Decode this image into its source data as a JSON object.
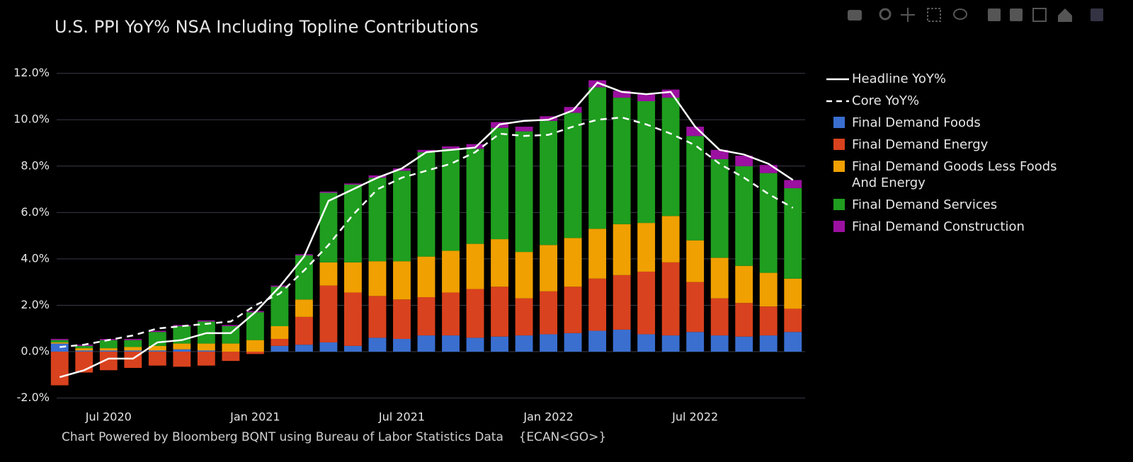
{
  "chart_data": {
    "type": "bar",
    "stacked": true,
    "title": "U.S. PPI YoY% NSA Including Topline Contributions",
    "source": "Chart Powered by Bloomberg BQNT using Bureau of Labor Statistics Data    {ECAN<GO>}",
    "x": [
      "2020-05",
      "2020-06",
      "2020-07",
      "2020-08",
      "2020-09",
      "2020-10",
      "2020-11",
      "2020-12",
      "2021-01",
      "2021-02",
      "2021-03",
      "2021-04",
      "2021-05",
      "2021-06",
      "2021-07",
      "2021-08",
      "2021-09",
      "2021-10",
      "2021-11",
      "2021-12",
      "2022-01",
      "2022-02",
      "2022-03",
      "2022-04",
      "2022-05",
      "2022-06",
      "2022-07",
      "2022-08",
      "2022-09",
      "2022-10",
      "2022-11"
    ],
    "xlim": [
      "2020-05",
      "2022-11"
    ],
    "xticks": [
      {
        "value": "2020-07",
        "label": "Jul 2020"
      },
      {
        "value": "2021-01",
        "label": "Jan 2021"
      },
      {
        "value": "2021-07",
        "label": "Jul 2021"
      },
      {
        "value": "2022-01",
        "label": "Jan 2022"
      },
      {
        "value": "2022-07",
        "label": "Jul 2022"
      }
    ],
    "ylim": [
      -2.5,
      12.6
    ],
    "yticks": [
      {
        "value": -2,
        "label": "-2.0%"
      },
      {
        "value": 0,
        "label": "0.0%"
      },
      {
        "value": 2,
        "label": "2.0%"
      },
      {
        "value": 4,
        "label": "4.0%"
      },
      {
        "value": 6,
        "label": "6.0%"
      },
      {
        "value": 8,
        "label": "8.0%"
      },
      {
        "value": 10,
        "label": "10.0%"
      },
      {
        "value": 12,
        "label": "12.0%"
      }
    ],
    "grid": true,
    "legend": "right",
    "series": [
      {
        "name": "Final Demand Foods",
        "type": "bar",
        "color": "#3a6fd0",
        "values": [
          0.35,
          0.05,
          0.05,
          0.05,
          0.05,
          0.1,
          0.05,
          0.0,
          0.0,
          0.25,
          0.3,
          0.4,
          0.25,
          0.6,
          0.55,
          0.7,
          0.7,
          0.6,
          0.65,
          0.7,
          0.75,
          0.8,
          0.9,
          0.95,
          0.75,
          0.7,
          0.85,
          0.7,
          0.65,
          0.7,
          0.85
        ]
      },
      {
        "name": "Final Demand Energy",
        "type": "bar",
        "color": "#d9421e",
        "values": [
          -1.45,
          -0.9,
          -0.8,
          -0.7,
          -0.6,
          -0.65,
          -0.6,
          -0.4,
          -0.1,
          0.3,
          1.2,
          2.45,
          2.3,
          1.8,
          1.7,
          1.65,
          1.85,
          2.1,
          2.15,
          1.6,
          1.85,
          2.0,
          2.25,
          2.35,
          2.7,
          3.15,
          2.15,
          1.6,
          1.45,
          1.25,
          1.0
        ]
      },
      {
        "name": "Final Demand Goods Less Foods And Energy",
        "type": "bar",
        "color": "#f0a000",
        "values": [
          0.05,
          0.1,
          0.1,
          0.15,
          0.2,
          0.25,
          0.3,
          0.35,
          0.5,
          0.55,
          0.75,
          1.0,
          1.3,
          1.5,
          1.65,
          1.75,
          1.8,
          1.95,
          2.05,
          2.0,
          2.0,
          2.1,
          2.15,
          2.2,
          2.1,
          2.0,
          1.8,
          1.75,
          1.6,
          1.45,
          1.3
        ]
      },
      {
        "name": "Final Demand Services",
        "type": "bar",
        "color": "#1f9e1f",
        "values": [
          0.1,
          0.1,
          0.35,
          0.3,
          0.6,
          0.75,
          0.95,
          0.75,
          1.2,
          1.7,
          1.9,
          3.0,
          3.35,
          3.6,
          3.9,
          4.5,
          4.4,
          4.1,
          4.8,
          5.2,
          5.35,
          5.4,
          6.1,
          5.45,
          5.25,
          5.1,
          4.5,
          4.25,
          4.3,
          4.3,
          3.9
        ]
      },
      {
        "name": "Final Demand Construction",
        "type": "bar",
        "color": "#9b10a0",
        "values": [
          0.05,
          0.05,
          0.05,
          0.05,
          0.05,
          0.05,
          0.05,
          0.05,
          0.05,
          0.05,
          0.05,
          0.05,
          0.05,
          0.1,
          0.1,
          0.1,
          0.1,
          0.2,
          0.25,
          0.2,
          0.2,
          0.25,
          0.3,
          0.3,
          0.3,
          0.35,
          0.4,
          0.4,
          0.45,
          0.35,
          0.35
        ]
      },
      {
        "name": "Headline YoY%",
        "type": "line",
        "color": "#ffffff",
        "dash": false,
        "values": [
          -1.1,
          -0.8,
          -0.3,
          -0.3,
          0.4,
          0.5,
          0.8,
          0.8,
          1.7,
          2.8,
          4.1,
          6.5,
          7.0,
          7.5,
          7.9,
          8.6,
          8.7,
          8.8,
          9.8,
          9.95,
          10.0,
          10.4,
          11.6,
          11.2,
          11.1,
          11.2,
          9.7,
          8.7,
          8.5,
          8.1,
          7.4
        ]
      },
      {
        "name": "Core YoY%",
        "type": "line",
        "color": "#ffffff",
        "dash": true,
        "values": [
          0.2,
          0.3,
          0.5,
          0.7,
          1.0,
          1.1,
          1.2,
          1.3,
          2.0,
          2.5,
          3.5,
          4.6,
          5.9,
          7.0,
          7.5,
          7.8,
          8.1,
          8.6,
          9.4,
          9.3,
          9.35,
          9.7,
          10.0,
          10.1,
          9.8,
          9.4,
          8.9,
          8.1,
          7.5,
          6.8,
          6.2
        ]
      }
    ]
  }
}
